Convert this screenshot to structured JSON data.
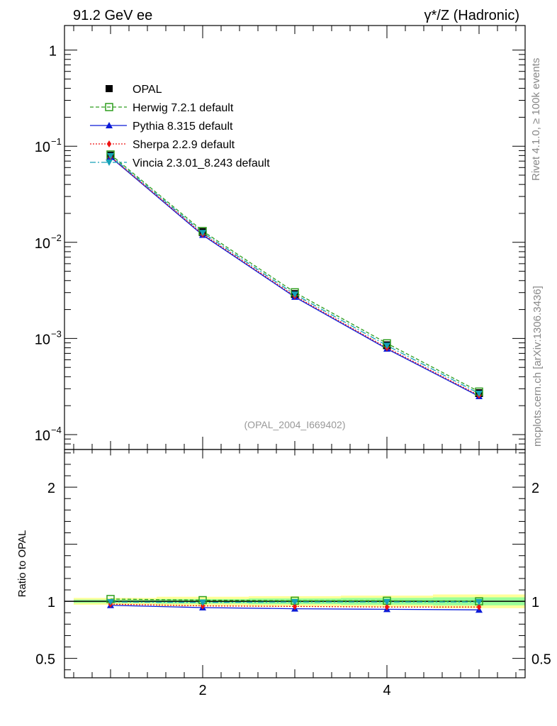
{
  "header": {
    "left_title": "91.2 GeV ee",
    "right_title": "γ*/Z (Hadronic)"
  },
  "side_labels": {
    "rivet": "Rivet 4.1.0, ≥ 100k events",
    "mcplots": "mcplots.cern.ch [arXiv:1306.3436]"
  },
  "watermark": "(OPAL_2004_I669402)",
  "colors": {
    "opal": "#000000",
    "herwig": "#2e9e1e",
    "pythia": "#0a1ad8",
    "sherpa": "#ee1111",
    "vincia": "#14a0b8",
    "band_outer": "#ffff99",
    "band_inner": "#99ff99"
  },
  "chart_data": [
    {
      "type": "line",
      "scale": "log",
      "title": "",
      "xlabel": "",
      "ylabel": "",
      "xlim": [
        0.5,
        5.5
      ],
      "ylim": [
        7e-05,
        1.8
      ],
      "y_ticks": [
        {
          "value": 1,
          "label": "1"
        },
        {
          "value": 0.1,
          "label": "10",
          "exp": "−1"
        },
        {
          "value": 0.01,
          "label": "10",
          "exp": "−2"
        },
        {
          "value": 0.001,
          "label": "10",
          "exp": "−3"
        },
        {
          "value": 0.0001,
          "label": "10",
          "exp": "−4"
        }
      ],
      "x": [
        1,
        2,
        3,
        4,
        5
      ],
      "series": [
        {
          "key": "opal",
          "name": "OPAL",
          "values": [
            0.08,
            0.0128,
            0.0029,
            0.00085,
            0.00027
          ]
        },
        {
          "key": "herwig",
          "name": "Herwig 7.2.1 default",
          "values": [
            0.082,
            0.0131,
            0.00302,
            0.00089,
            0.00028
          ]
        },
        {
          "key": "pythia",
          "name": "Pythia 8.315 default",
          "values": [
            0.077,
            0.0119,
            0.0027,
            0.00078,
            0.00025
          ]
        },
        {
          "key": "sherpa",
          "name": "Sherpa 2.2.9 default",
          "values": [
            0.078,
            0.0122,
            0.00277,
            0.0008,
            0.000256
          ]
        },
        {
          "key": "vincia",
          "name": "Vincia 2.3.01_8.243 default",
          "values": [
            0.0795,
            0.0126,
            0.00288,
            0.000845,
            0.000268
          ]
        }
      ]
    },
    {
      "type": "line",
      "title": "",
      "xlabel": "",
      "ylabel": "Ratio to OPAL",
      "xlim": [
        0.5,
        5.5
      ],
      "ylim": [
        0.33,
        2.33
      ],
      "x_ticks": [
        {
          "value": 2,
          "label": "2"
        },
        {
          "value": 4,
          "label": "4"
        }
      ],
      "y_ticks": [
        {
          "value": 2,
          "label": "2"
        },
        {
          "value": 1,
          "label": "1"
        },
        {
          "value": 0.5,
          "label": "0.5"
        }
      ],
      "x": [
        1,
        2,
        3,
        4,
        5
      ],
      "band_edges": [
        0.6,
        1.5,
        2.5,
        3.5,
        4.5,
        5.5
      ],
      "band_outer": [
        [
          0.97,
          1.03
        ],
        [
          0.96,
          1.04
        ],
        [
          0.955,
          1.045
        ],
        [
          0.95,
          1.05
        ],
        [
          0.94,
          1.06
        ]
      ],
      "band_inner": [
        [
          0.985,
          1.015
        ],
        [
          0.98,
          1.02
        ],
        [
          0.975,
          1.025
        ],
        [
          0.97,
          1.03
        ],
        [
          0.965,
          1.035
        ]
      ],
      "series": [
        {
          "key": "herwig",
          "name": "Herwig 7.2.1 default",
          "values": [
            1.02,
            1.01,
            1.005,
            1.005,
            1.0
          ]
        },
        {
          "key": "pythia",
          "name": "Pythia 8.315 default",
          "values": [
            0.965,
            0.945,
            0.935,
            0.93,
            0.925
          ]
        },
        {
          "key": "sherpa",
          "name": "Sherpa 2.2.9 default",
          "values": [
            0.975,
            0.96,
            0.955,
            0.95,
            0.95
          ]
        },
        {
          "key": "vincia",
          "name": "Vincia 2.3.01_8.243 default",
          "values": [
            0.995,
            0.99,
            0.995,
            0.995,
            0.995
          ]
        }
      ]
    }
  ]
}
